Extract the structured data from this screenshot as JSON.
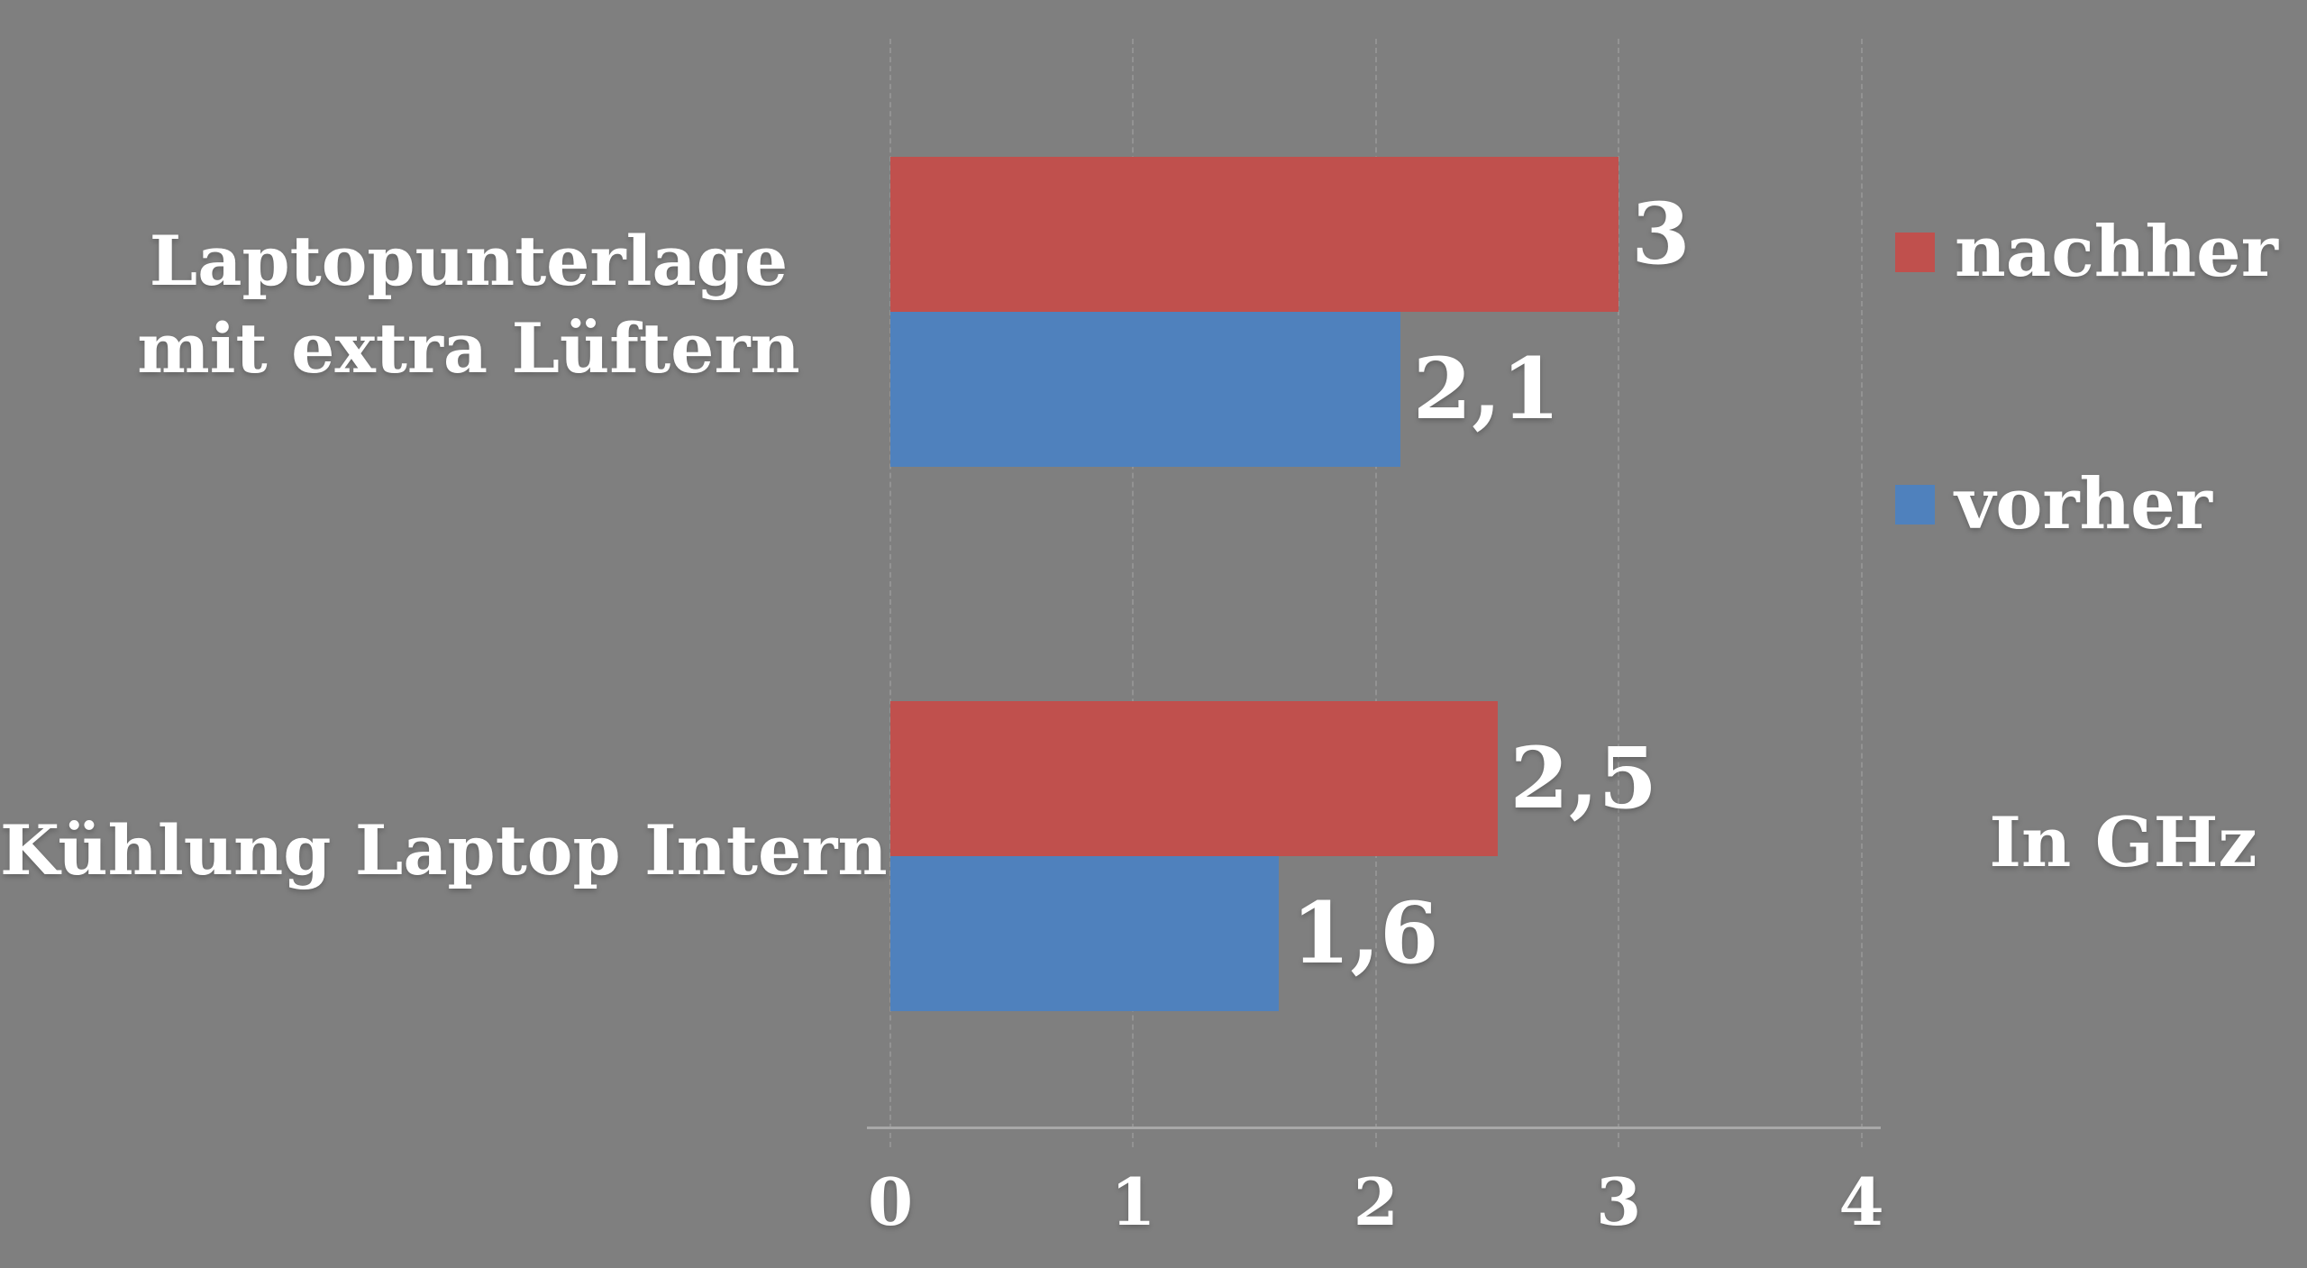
{
  "chart_data": {
    "type": "bar",
    "orientation": "horizontal",
    "title": "",
    "categories": [
      "Laptopunterlage mit extra Lüftern",
      "Kühlung Laptop Intern"
    ],
    "series": [
      {
        "name": "nachher",
        "color": "#c0504d",
        "values": [
          3,
          2.5
        ],
        "value_labels": [
          "3",
          "2,5"
        ]
      },
      {
        "name": "vorher",
        "color": "#4f81bd",
        "values": [
          2.1,
          1.6
        ],
        "value_labels": [
          "2,1",
          "1,6"
        ]
      }
    ],
    "x_ticks": [
      "0",
      "1",
      "2",
      "3",
      "4"
    ],
    "xlim": [
      0,
      4
    ],
    "axis_title": "In GHz",
    "legend_position": "right",
    "grid": true,
    "background_color": "#7f7f7f",
    "text_color": "#ffffff",
    "gridline_color": "#939393",
    "axis_line_color": "#a8a8a8"
  }
}
